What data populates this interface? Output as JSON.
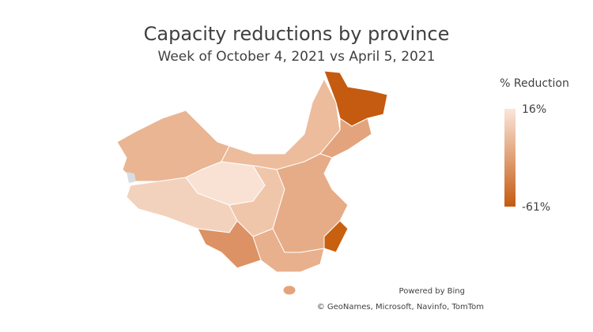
{
  "header": {
    "title": "Capacity reductions by province",
    "subtitle": "Week of October 4, 2021 vs April 5, 2021"
  },
  "legend": {
    "title": "% Reduction",
    "max_label": "16%",
    "min_label": "-61%",
    "colors": [
      "#fae6da",
      "#c55a11"
    ]
  },
  "credits": {
    "provider": "Powered by Bing",
    "copyright": "© GeoNames, Microsoft, Navinfo, TomTom"
  }
}
